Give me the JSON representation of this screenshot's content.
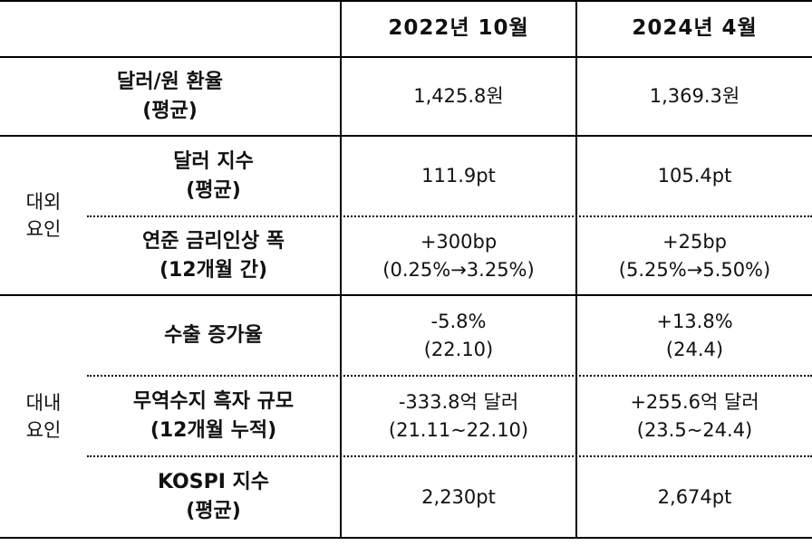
{
  "header": {
    "col1": "2022년 10월",
    "col2": "2024년 4월"
  },
  "groups": {
    "external": [
      "대외",
      "요인"
    ],
    "internal": [
      "대내",
      "요인"
    ]
  },
  "rows": [
    {
      "label": [
        "달러/원 환율",
        "(평균)"
      ],
      "v1": [
        "1,425.8원"
      ],
      "v2": [
        "1,369.3원"
      ]
    },
    {
      "label": [
        "달러 지수",
        "(평균)"
      ],
      "v1": [
        "111.9pt"
      ],
      "v2": [
        "105.4pt"
      ]
    },
    {
      "label": [
        "연준 금리인상 폭",
        "(12개월 간)"
      ],
      "v1": [
        "+300bp",
        "(0.25%→3.25%)"
      ],
      "v2": [
        "+25bp",
        "(5.25%→5.50%)"
      ]
    },
    {
      "label": [
        "수출 증가율"
      ],
      "v1": [
        "-5.8%",
        "(22.10)"
      ],
      "v2": [
        "+13.8%",
        "(24.4)"
      ]
    },
    {
      "label": [
        "무역수지 흑자 규모",
        "(12개월 누적)"
      ],
      "v1": [
        "-333.8억 달러",
        "(21.11~22.10)"
      ],
      "v2": [
        "+255.6억 달러",
        "(23.5~24.4)"
      ]
    },
    {
      "label": [
        "KOSPI 지수",
        "(평균)"
      ],
      "v1": [
        "2,230pt"
      ],
      "v2": [
        "2,674pt"
      ]
    }
  ]
}
